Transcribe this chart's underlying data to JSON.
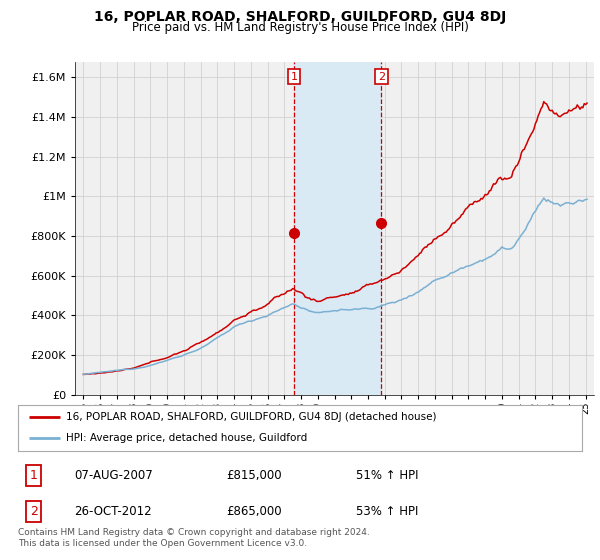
{
  "title": "16, POPLAR ROAD, SHALFORD, GUILDFORD, GU4 8DJ",
  "subtitle": "Price paid vs. HM Land Registry's House Price Index (HPI)",
  "ytick_values": [
    0,
    200000,
    400000,
    600000,
    800000,
    1000000,
    1200000,
    1400000,
    1600000
  ],
  "ytick_labels": [
    "£0",
    "£200K",
    "£400K",
    "£600K",
    "£800K",
    "£1M",
    "£1.2M",
    "£1.4M",
    "£1.6M"
  ],
  "ylim": [
    0,
    1680000
  ],
  "xlim_start": 1994.5,
  "xlim_end": 2025.5,
  "line1_color": "#cc0000",
  "line2_color": "#7ab0d4",
  "sale1_x": 2007.58,
  "sale1_y": 815000,
  "sale2_x": 2012.8,
  "sale2_y": 865000,
  "vline1_x": 2007.58,
  "vline2_x": 2012.8,
  "shade_color": "#daeaf5",
  "grid_color": "#cccccc",
  "legend_line1": "16, POPLAR ROAD, SHALFORD, GUILDFORD, GU4 8DJ (detached house)",
  "legend_line2": "HPI: Average price, detached house, Guildford",
  "table_row1": [
    "1",
    "07-AUG-2007",
    "£815,000",
    "51% ↑ HPI"
  ],
  "table_row2": [
    "2",
    "26-OCT-2012",
    "£865,000",
    "53% ↑ HPI"
  ],
  "footer": "Contains HM Land Registry data © Crown copyright and database right 2024.\nThis data is licensed under the Open Government Licence v3.0.",
  "background_color": "#ffffff",
  "plot_bg_color": "#f0f0f0"
}
